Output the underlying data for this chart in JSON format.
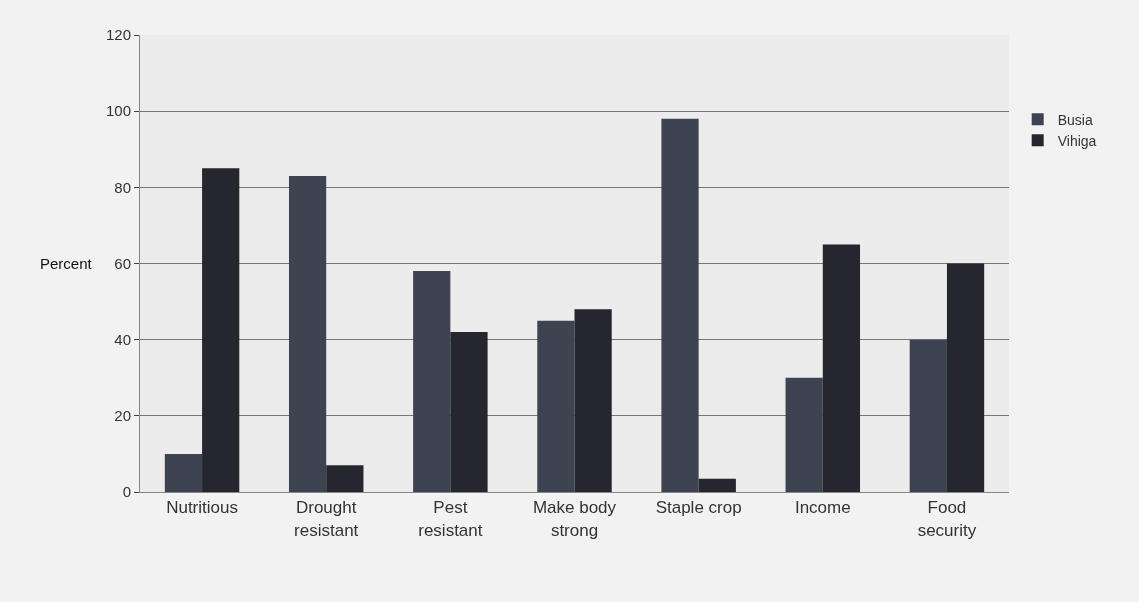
{
  "chart_data": {
    "type": "bar",
    "ylabel": "Percent",
    "categories": [
      "Nutritious",
      "Drought\nresistant",
      "Pest\nresistant",
      "Make body\nstrong",
      "Staple crop",
      "Income",
      "Food\nsecurity"
    ],
    "series": [
      {
        "name": "Busia",
        "color": "#3d4350",
        "values": [
          10,
          83,
          58,
          45,
          98,
          30,
          40
        ]
      },
      {
        "name": "Vihiga",
        "color": "#26272e",
        "values": [
          85,
          7,
          42,
          48,
          3.5,
          65,
          60
        ]
      }
    ],
    "ylim": [
      0,
      120
    ],
    "yticks": [
      0,
      20,
      40,
      60,
      80,
      100,
      120
    ],
    "grid": "y",
    "legend": "top right"
  }
}
